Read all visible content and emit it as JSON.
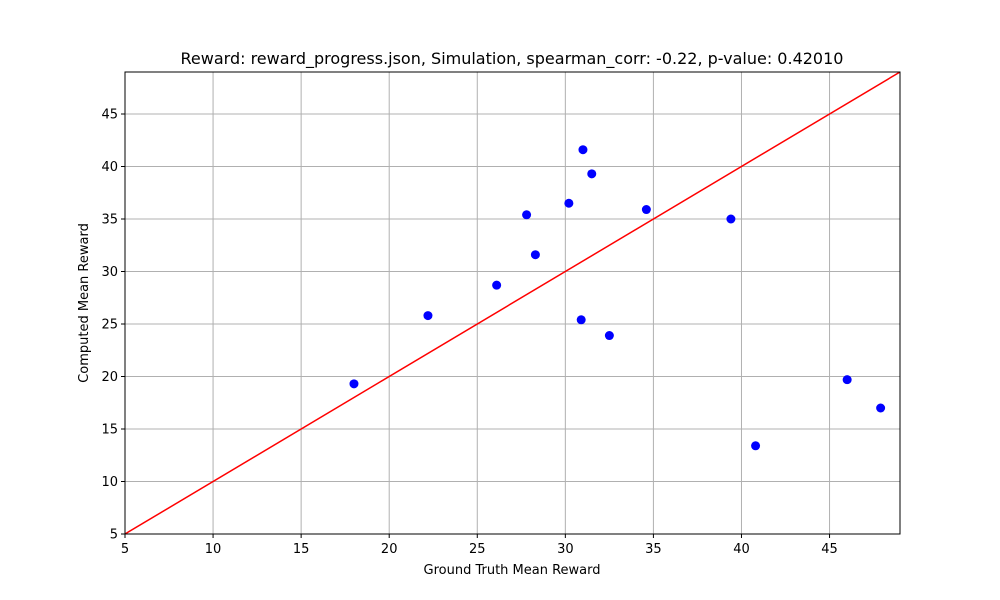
{
  "chart_data": {
    "type": "scatter",
    "title": "Reward: reward_progress.json, Simulation, spearman_corr: -0.22, p-value: 0.42010",
    "xlabel": "Ground Truth Mean Reward",
    "ylabel": "Computed Mean Reward",
    "xlim": [
      5,
      49
    ],
    "ylim": [
      5,
      49
    ],
    "xticks": [
      5,
      10,
      15,
      20,
      25,
      30,
      35,
      40,
      45
    ],
    "yticks": [
      5,
      10,
      15,
      20,
      25,
      30,
      35,
      40,
      45
    ],
    "grid": true,
    "reference_line": {
      "x": [
        5,
        49
      ],
      "y": [
        5,
        49
      ],
      "color": "#ff0000"
    },
    "point_color": "#0000ff",
    "points": [
      {
        "x": 18.0,
        "y": 19.3
      },
      {
        "x": 22.2,
        "y": 25.8
      },
      {
        "x": 26.1,
        "y": 28.7
      },
      {
        "x": 27.8,
        "y": 35.4
      },
      {
        "x": 28.3,
        "y": 31.6
      },
      {
        "x": 30.2,
        "y": 36.5
      },
      {
        "x": 30.9,
        "y": 25.4
      },
      {
        "x": 31.0,
        "y": 41.6
      },
      {
        "x": 31.5,
        "y": 39.3
      },
      {
        "x": 32.5,
        "y": 23.9
      },
      {
        "x": 34.6,
        "y": 35.9
      },
      {
        "x": 39.4,
        "y": 35.0
      },
      {
        "x": 40.8,
        "y": 13.4
      },
      {
        "x": 46.0,
        "y": 19.7
      },
      {
        "x": 47.9,
        "y": 17.0
      }
    ]
  }
}
